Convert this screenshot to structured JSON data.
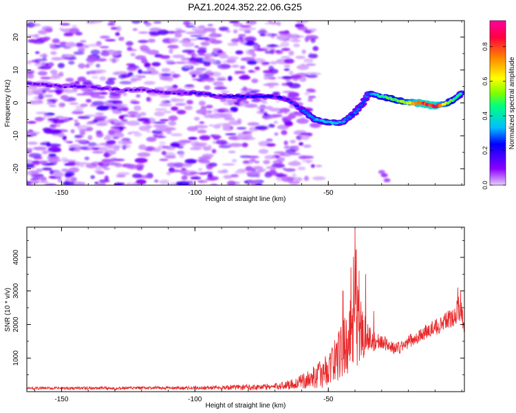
{
  "title": "PAZ1.2024.352.22.06.G25",
  "chart_data": [
    {
      "type": "heatmap",
      "xlabel": "Height of straight line (km)",
      "ylabel": "Frequency (Hz)",
      "xlim": [
        -163,
        1
      ],
      "ylim": [
        -25,
        25
      ],
      "xticks": [
        -150,
        -100,
        -50
      ],
      "yticks": [
        -20,
        -10,
        0,
        10,
        20
      ],
      "colorbar": {
        "label": "Normalized spectral amplitude",
        "ticks": [
          "0.0",
          "0.2",
          "0.4",
          "0.6",
          "0.8"
        ],
        "tick_values": [
          0.0,
          0.2,
          0.4,
          0.6,
          0.8
        ],
        "range": [
          0,
          0.95
        ],
        "colors": [
          "#e6ccff",
          "#8a00ff",
          "#0000ff",
          "#00bfff",
          "#00ff80",
          "#80ff00",
          "#ffff00",
          "#ff8000",
          "#ff0040",
          "#ff00a0"
        ]
      },
      "ridge": {
        "name": "",
        "x": [
          -163,
          -150,
          -140,
          -130,
          -120,
          -110,
          -100,
          -90,
          -80,
          -70,
          -65,
          -60,
          -55,
          -50,
          -45,
          -40,
          -37,
          -35,
          -30,
          -25,
          -20,
          -15,
          -10,
          -5,
          0
        ],
        "freq_hz": [
          6,
          5,
          5,
          4,
          4,
          3,
          3,
          2,
          2,
          2,
          1,
          -2,
          -5,
          -6,
          -6,
          -3,
          0,
          3,
          2,
          1,
          0,
          0,
          -1,
          0,
          3
        ],
        "amplitude": [
          0.15,
          0.15,
          0.15,
          0.15,
          0.15,
          0.15,
          0.2,
          0.2,
          0.25,
          0.25,
          0.25,
          0.3,
          0.35,
          0.4,
          0.35,
          0.3,
          0.3,
          0.3,
          0.5,
          0.55,
          0.65,
          0.9,
          0.9,
          0.6,
          0.4
        ]
      },
      "noise_extent_x": [
        -163,
        -60
      ],
      "grid": false
    },
    {
      "type": "line",
      "xlabel": "Height of straight line (km)",
      "ylabel": "SNR (10 * v/v)",
      "xlim": [
        -163,
        1
      ],
      "ylim": [
        0,
        4900
      ],
      "xticks": [
        -150,
        -100,
        -50
      ],
      "yticks": [
        1000,
        2000,
        3000,
        4000
      ],
      "series": [
        {
          "name": "",
          "color": "#e8282a",
          "envelope_x": [
            -163,
            -100,
            -70,
            -62,
            -58,
            -55,
            -52,
            -50,
            -48,
            -46,
            -44,
            -42,
            -41,
            -40,
            -39,
            -38,
            -37,
            -36,
            -35,
            -34,
            -32,
            -30,
            -28,
            -26,
            -24,
            -22,
            -20,
            -18,
            -16,
            -14,
            -12,
            -10,
            -8,
            -6,
            -4,
            -2,
            -0.5,
            1
          ],
          "envelope_mean": [
            100,
            110,
            150,
            250,
            350,
            450,
            550,
            700,
            900,
            1100,
            1300,
            1700,
            2300,
            2700,
            2300,
            1800,
            1800,
            1700,
            1600,
            1500,
            1500,
            1500,
            1400,
            1300,
            1300,
            1350,
            1500,
            1550,
            1650,
            1750,
            1850,
            1900,
            2000,
            2100,
            2200,
            2300,
            2600,
            1900
          ],
          "envelope_spread": [
            40,
            50,
            100,
            180,
            250,
            350,
            450,
            500,
            650,
            800,
            900,
            1100,
            1500,
            2000,
            1600,
            1200,
            900,
            700,
            500,
            400,
            250,
            200,
            200,
            200,
            200,
            200,
            200,
            200,
            200,
            220,
            220,
            250,
            250,
            250,
            300,
            350,
            500,
            200
          ],
          "peaks": [
            {
              "x": -40,
              "y": 4850
            },
            {
              "x": -41.5,
              "y": 3700
            },
            {
              "x": -38.5,
              "y": 3600
            },
            {
              "x": -44.5,
              "y": 3000
            },
            {
              "x": -36,
              "y": 3500
            },
            {
              "x": -33,
              "y": 2400
            },
            {
              "x": -1.5,
              "y": 3100
            }
          ]
        }
      ],
      "grid": false
    }
  ]
}
